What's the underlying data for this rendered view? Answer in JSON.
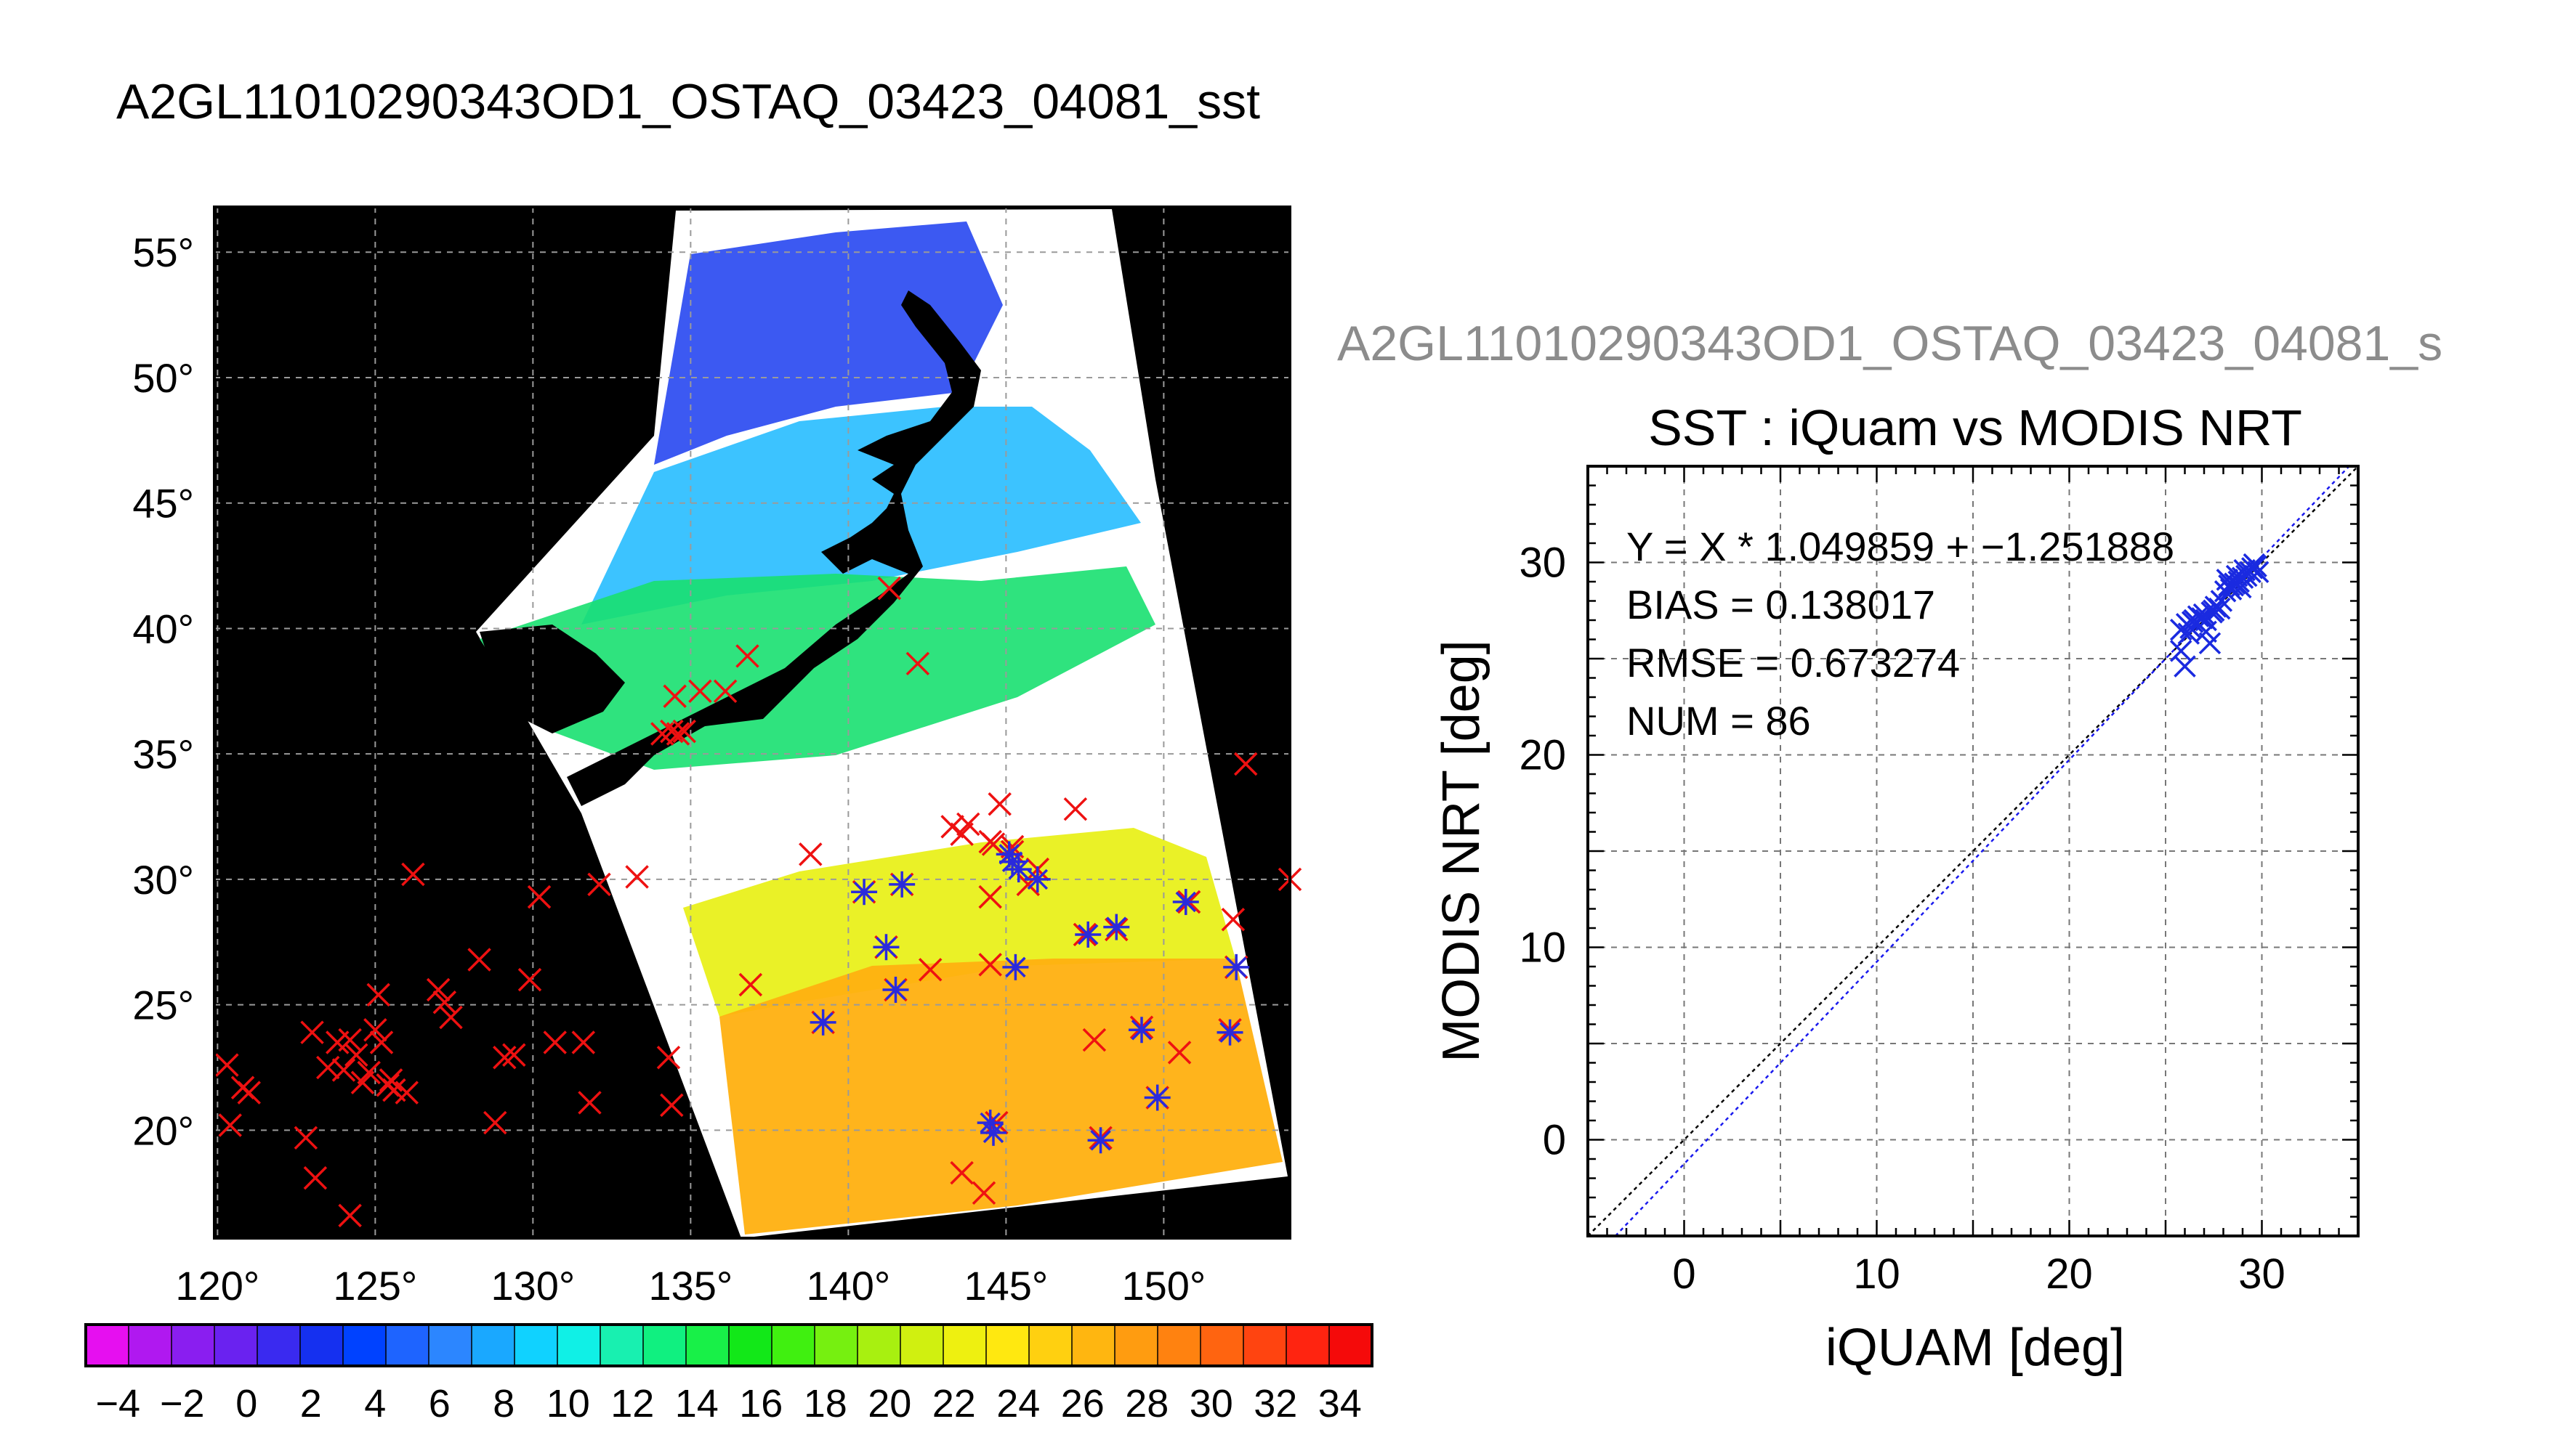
{
  "figure": {
    "title": "A2GL11010290343OD1_OSTAQ_03423_04081_sst",
    "right_title": "A2GL11010290343OD1_OSTAQ_03423_04081_s"
  },
  "map": {
    "lat_ticks": [
      55,
      50,
      45,
      40,
      35,
      30,
      25,
      20
    ],
    "lon_ticks": [
      120,
      125,
      130,
      135,
      140,
      145,
      150
    ],
    "lat_range": [
      15.7,
      56.8
    ],
    "lon_range": [
      119.9,
      154.0
    ],
    "degree_symbol": "°",
    "colorbar": {
      "labels": [
        "−4",
        "−2",
        "0",
        "2",
        "4",
        "6",
        "8",
        "10",
        "12",
        "14",
        "16",
        "18",
        "20",
        "22",
        "24",
        "26",
        "28",
        "30",
        "32",
        "34"
      ],
      "range": [
        -5,
        35
      ],
      "colors": [
        "#e60ff0",
        "#b018f0",
        "#8a1ef0",
        "#6a22f0",
        "#3a2af0",
        "#1530f0",
        "#0042ff",
        "#1e64ff",
        "#2c86ff",
        "#1aa8ff",
        "#10d2ff",
        "#10f0e6",
        "#18f0b0",
        "#10f080",
        "#18f048",
        "#12e818",
        "#40f010",
        "#76f010",
        "#a8f010",
        "#d0f010",
        "#eef010",
        "#ffe810",
        "#ffd010",
        "#ffb610",
        "#ff9c10",
        "#ff8210",
        "#ff6410",
        "#ff4410",
        "#ff2410",
        "#f50a0a"
      ]
    },
    "red_markers": [
      [
        120.3,
        22.6
      ],
      [
        120.4,
        20.2
      ],
      [
        120.8,
        21.7
      ],
      [
        121.0,
        21.5
      ],
      [
        122.8,
        19.7
      ],
      [
        123.1,
        18.1
      ],
      [
        123.0,
        23.9
      ],
      [
        123.5,
        22.5
      ],
      [
        123.8,
        23.5
      ],
      [
        124.0,
        22.4
      ],
      [
        124.2,
        23.6
      ],
      [
        124.4,
        23.0
      ],
      [
        124.6,
        21.9
      ],
      [
        124.8,
        22.3
      ],
      [
        125.0,
        24.0
      ],
      [
        125.2,
        23.5
      ],
      [
        125.4,
        21.8
      ],
      [
        125.1,
        25.4
      ],
      [
        125.5,
        22.0
      ],
      [
        125.6,
        21.6
      ],
      [
        126.0,
        21.5
      ],
      [
        124.2,
        16.6
      ],
      [
        126.2,
        30.2
      ],
      [
        127.0,
        25.6
      ],
      [
        127.2,
        25.1
      ],
      [
        127.4,
        24.5
      ],
      [
        128.3,
        26.8
      ],
      [
        129.1,
        22.9
      ],
      [
        129.4,
        23.0
      ],
      [
        128.8,
        20.3
      ],
      [
        129.9,
        26.0
      ],
      [
        130.2,
        29.3
      ],
      [
        130.7,
        23.5
      ],
      [
        131.6,
        23.5
      ],
      [
        131.8,
        21.1
      ],
      [
        132.1,
        29.8
      ],
      [
        133.3,
        30.1
      ],
      [
        134.3,
        22.9
      ],
      [
        134.4,
        21.0
      ],
      [
        134.1,
        35.8
      ],
      [
        134.4,
        35.9
      ],
      [
        134.6,
        35.8
      ],
      [
        134.8,
        35.9
      ],
      [
        134.5,
        37.3
      ],
      [
        135.3,
        37.5
      ],
      [
        136.1,
        37.5
      ],
      [
        136.8,
        38.9
      ],
      [
        138.8,
        31.0
      ],
      [
        139.2,
        24.3
      ],
      [
        136.9,
        25.8
      ],
      [
        141.3,
        41.6
      ],
      [
        142.2,
        38.6
      ],
      [
        140.5,
        29.5
      ],
      [
        141.2,
        27.3
      ],
      [
        141.5,
        25.6
      ],
      [
        142.6,
        26.4
      ],
      [
        143.3,
        32.1
      ],
      [
        143.6,
        31.8
      ],
      [
        143.8,
        32.2
      ],
      [
        144.6,
        31.4
      ],
      [
        144.8,
        33.0
      ],
      [
        144.5,
        29.3
      ],
      [
        145.2,
        31.3
      ],
      [
        145.2,
        31.1
      ],
      [
        145.7,
        29.8
      ],
      [
        146.0,
        30.4
      ],
      [
        147.2,
        32.8
      ],
      [
        147.5,
        27.8
      ],
      [
        147.8,
        23.6
      ],
      [
        148.5,
        28.0
      ],
      [
        148.0,
        19.7
      ],
      [
        149.3,
        24.1
      ],
      [
        149.8,
        21.3
      ],
      [
        150.5,
        23.1
      ],
      [
        150.8,
        29.1
      ],
      [
        152.1,
        24.0
      ],
      [
        152.2,
        28.4
      ],
      [
        152.3,
        26.5
      ],
      [
        152.6,
        34.6
      ],
      [
        154.0,
        30.0
      ],
      [
        144.3,
        17.5
      ],
      [
        143.6,
        18.3
      ],
      [
        144.7,
        20.3
      ],
      [
        141.7,
        29.8
      ],
      [
        144.5,
        26.6
      ],
      [
        144.5,
        31.5
      ]
    ],
    "blue_markers": [
      [
        139.2,
        24.3
      ],
      [
        140.5,
        29.5
      ],
      [
        141.2,
        27.3
      ],
      [
        141.5,
        25.6
      ],
      [
        141.7,
        29.8
      ],
      [
        144.5,
        20.3
      ],
      [
        144.6,
        19.9
      ],
      [
        145.1,
        31.0
      ],
      [
        145.2,
        30.7
      ],
      [
        145.4,
        30.4
      ],
      [
        145.3,
        26.5
      ],
      [
        146.0,
        30.0
      ],
      [
        147.6,
        27.8
      ],
      [
        148.5,
        28.1
      ],
      [
        148.0,
        19.6
      ],
      [
        149.3,
        24.0
      ],
      [
        149.8,
        21.3
      ],
      [
        150.7,
        29.1
      ],
      [
        152.1,
        23.9
      ],
      [
        152.3,
        26.5
      ]
    ]
  },
  "chart_data": {
    "type": "scatter",
    "title": "SST : iQuam vs MODIS NRT",
    "xlabel": "iQUAM [deg]",
    "ylabel": "MODIS NRT [deg]",
    "xlim": [
      -5,
      35
    ],
    "ylim": [
      -5,
      35
    ],
    "xticks": [
      0,
      10,
      20,
      30
    ],
    "yticks": [
      0,
      10,
      20,
      30
    ],
    "grid": true,
    "stats": {
      "equation": "Y = X * 1.049859 + −1.251888",
      "bias": "BIAS = 0.138017",
      "rmse": "RMSE = 0.673274",
      "num": "NUM = 86"
    },
    "fit": {
      "slope": 1.049859,
      "intercept": -1.251888
    },
    "points": [
      [
        25.8,
        26.5
      ],
      [
        26.1,
        26.8
      ],
      [
        26.3,
        26.6
      ],
      [
        26.5,
        27.0
      ],
      [
        26.7,
        27.2
      ],
      [
        27.0,
        27.3
      ],
      [
        27.1,
        27.0
      ],
      [
        27.4,
        27.4
      ],
      [
        27.6,
        27.7
      ],
      [
        27.9,
        28.0
      ],
      [
        28.1,
        28.5
      ],
      [
        28.3,
        28.8
      ],
      [
        28.4,
        28.6
      ],
      [
        28.6,
        28.9
      ],
      [
        28.8,
        29.0
      ],
      [
        29.0,
        29.2
      ],
      [
        29.2,
        29.3
      ],
      [
        29.4,
        29.5
      ],
      [
        29.5,
        29.7
      ],
      [
        29.7,
        29.8
      ],
      [
        29.8,
        29.5
      ],
      [
        28.9,
        28.7
      ],
      [
        28.5,
        28.8
      ],
      [
        27.8,
        27.6
      ],
      [
        26.9,
        27.1
      ],
      [
        26.2,
        26.3
      ],
      [
        26.0,
        24.6
      ],
      [
        25.8,
        25.4
      ],
      [
        27.3,
        25.8
      ],
      [
        27.1,
        26.4
      ],
      [
        28.2,
        29.1
      ],
      [
        29.1,
        29.6
      ],
      [
        29.6,
        29.9
      ],
      [
        28.7,
        29.3
      ],
      [
        26.4,
        26.9
      ],
      [
        27.5,
        27.5
      ]
    ]
  }
}
